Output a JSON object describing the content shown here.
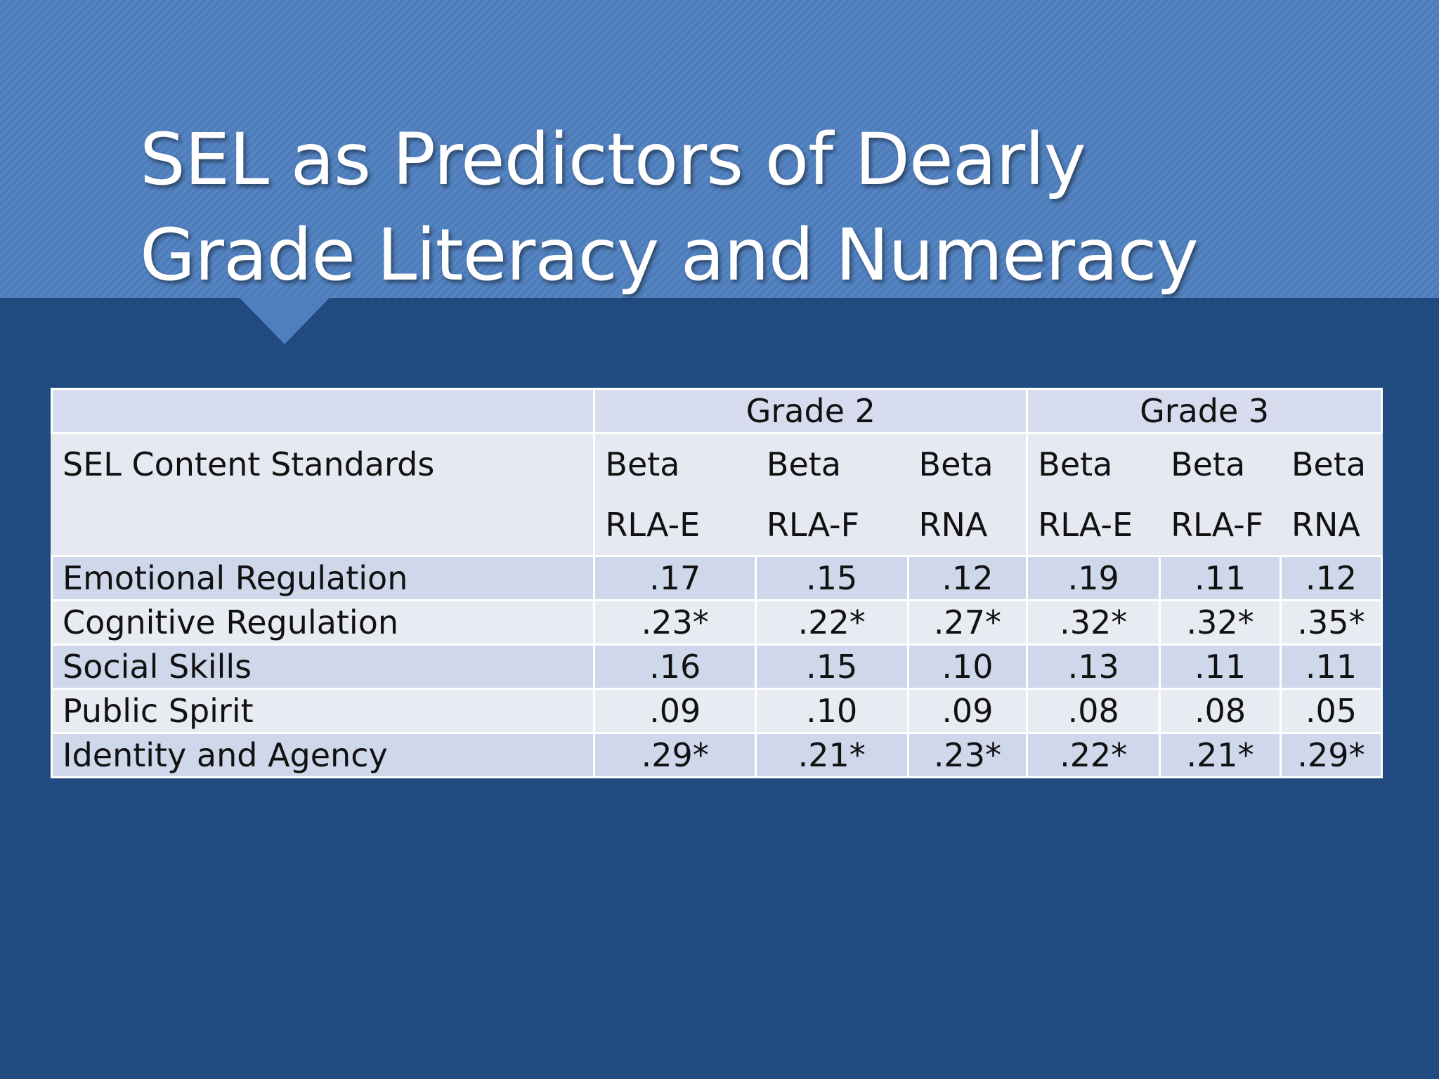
{
  "slide": {
    "title_lines": [
      "SEL as Predictors of Dearly",
      "Grade Literacy and Numeracy"
    ]
  },
  "table": {
    "groups": [
      "Grade 2",
      "Grade 3"
    ],
    "row_header": "SEL Content Standards",
    "columns": [
      {
        "measure": "Beta",
        "outcome": "RLA-E"
      },
      {
        "measure": "Beta",
        "outcome": "RLA-F"
      },
      {
        "measure": "Beta",
        "outcome": "RNA"
      },
      {
        "measure": "Beta",
        "outcome": "RLA-E"
      },
      {
        "measure": "Beta",
        "outcome": "RLA-F"
      },
      {
        "measure": "Beta",
        "outcome": "RNA"
      }
    ],
    "rows": [
      [
        "Emotional Regulation",
        ".17",
        ".15",
        ".12",
        ".19",
        ".11",
        ".12"
      ],
      [
        "Cognitive Regulation",
        ".23*",
        ".22*",
        ".27*",
        ".32*",
        ".32*",
        ".35*"
      ],
      [
        "Social Skills",
        ".16",
        ".15",
        ".10",
        ".13",
        ".11",
        ".11"
      ],
      [
        "Public Spirit",
        ".09",
        ".10",
        ".09",
        ".08",
        ".08",
        ".05"
      ],
      [
        "Identity and Agency",
        ".29*",
        ".21*",
        ".23*",
        ".22*",
        ".21*",
        ".29*"
      ]
    ]
  }
}
